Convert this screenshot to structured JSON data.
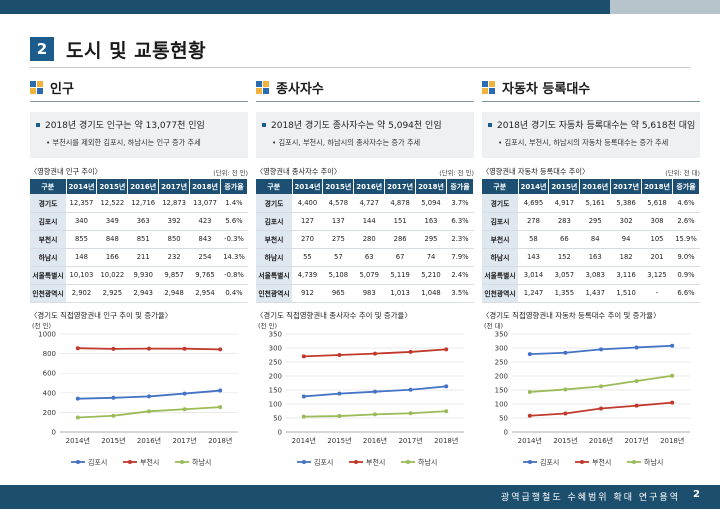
{
  "section": {
    "number": "2",
    "title": "도시 및 교통현황"
  },
  "columns": [
    {
      "title": "인구",
      "bullet_main": "2018년 경기도 인구는 약 13,077천 인임",
      "bullet_sub": "부천시를 제외한 김포시, 하남시는 인구 증가 추세",
      "table_caption": "〈영향권내 인구 추이〉",
      "table_unit": "(단위: 천 인)",
      "table": {
        "headers": [
          "구분",
          "2014년",
          "2015년",
          "2016년",
          "2017년",
          "2018년",
          "증가율"
        ],
        "rows": [
          [
            "경기도",
            "12,357",
            "12,522",
            "12,716",
            "12,873",
            "13,077",
            "1.4%"
          ],
          [
            "김포시",
            "340",
            "349",
            "363",
            "392",
            "423",
            "5.6%"
          ],
          [
            "부천시",
            "855",
            "848",
            "851",
            "850",
            "843",
            "-0.3%"
          ],
          [
            "하남시",
            "148",
            "166",
            "211",
            "232",
            "254",
            "14.3%"
          ],
          [
            "서울특별시",
            "10,103",
            "10,022",
            "9,930",
            "9,857",
            "9,765",
            "-0.8%"
          ],
          [
            "인천광역시",
            "2,902",
            "2,925",
            "2,943",
            "2,948",
            "2,954",
            "0.4%"
          ]
        ]
      },
      "chart_caption": "〈경기도 직접영향권내 인구 추이 및 증가율〉",
      "chart_unit": "(천 인)"
    },
    {
      "title": "종사자수",
      "bullet_main": "2018년 경기도 종사자수는 약 5,094천 인임",
      "bullet_sub": "김포시, 부천시, 하남시의 종사자수는 증가 추세",
      "table_caption": "〈영향권내 종사자수 추이〉",
      "table_unit": "(단위: 천 인)",
      "table": {
        "headers": [
          "구분",
          "2014년",
          "2015년",
          "2016년",
          "2017년",
          "2018년",
          "증가율"
        ],
        "rows": [
          [
            "경기도",
            "4,400",
            "4,578",
            "4,727",
            "4,878",
            "5,094",
            "3.7%"
          ],
          [
            "김포시",
            "127",
            "137",
            "144",
            "151",
            "163",
            "6.3%"
          ],
          [
            "부천시",
            "270",
            "275",
            "280",
            "286",
            "295",
            "2.3%"
          ],
          [
            "하남시",
            "55",
            "57",
            "63",
            "67",
            "74",
            "7.9%"
          ],
          [
            "서울특별시",
            "4,739",
            "5,108",
            "5,079",
            "5,119",
            "5,210",
            "2.4%"
          ],
          [
            "인천광역시",
            "912",
            "965",
            "983",
            "1,013",
            "1,048",
            "3.5%"
          ]
        ]
      },
      "chart_caption": "〈경기도 직접영향권내 종사자수 추이 및 증가율〉",
      "chart_unit": "(천 인)"
    },
    {
      "title": "자동차 등록대수",
      "bullet_main": "2018년 경기도 자동차 등록대수는 약 5,618천 대임",
      "bullet_sub": "김포시, 부천시, 하남시의 자동차 등록대수는 증가 추세",
      "table_caption": "〈영향권내 자동차 등록대수 추이〉",
      "table_unit": "(단위: 천 대)",
      "table": {
        "headers": [
          "구분",
          "2014년",
          "2015년",
          "2016년",
          "2017년",
          "2018년",
          "증가율"
        ],
        "rows": [
          [
            "경기도",
            "4,695",
            "4,917",
            "5,161",
            "5,386",
            "5,618",
            "4.6%"
          ],
          [
            "김포시",
            "278",
            "283",
            "295",
            "302",
            "308",
            "2.6%"
          ],
          [
            "부천시",
            "58",
            "66",
            "84",
            "94",
            "105",
            "15.9%"
          ],
          [
            "하남시",
            "143",
            "152",
            "163",
            "182",
            "201",
            "9.0%"
          ],
          [
            "서울특별시",
            "3,014",
            "3,057",
            "3,083",
            "3,116",
            "3,125",
            "0.9%"
          ],
          [
            "인천광역시",
            "1,247",
            "1,355",
            "1,437",
            "1,510",
            "-",
            "6.6%"
          ]
        ]
      },
      "chart_caption": "〈경기도 직접영향권내 자동차 등록대수 추이 및 증가율〉",
      "chart_unit": "(천 대)"
    }
  ],
  "chart_data": [
    {
      "type": "line",
      "title": "〈경기도 직접영향권내 인구 추이 및 증가율〉",
      "ylabel": "(천 인)",
      "x": [
        "2014년",
        "2015년",
        "2016년",
        "2017년",
        "2018년"
      ],
      "ylim": [
        0,
        1000
      ],
      "yticks": [
        0,
        200,
        400,
        600,
        800,
        1000
      ],
      "legend": "bottom",
      "series": [
        {
          "name": "김포시",
          "color": "#4472c4",
          "values": [
            340,
            349,
            363,
            392,
            423
          ]
        },
        {
          "name": "부천시",
          "color": "#c0392b",
          "values": [
            855,
            848,
            851,
            850,
            843
          ]
        },
        {
          "name": "하남시",
          "color": "#9bbb59",
          "values": [
            148,
            166,
            211,
            232,
            254
          ]
        }
      ]
    },
    {
      "type": "line",
      "title": "〈경기도 직접영향권내 종사자수 추이 및 증가율〉",
      "ylabel": "(천 인)",
      "x": [
        "2014년",
        "2015년",
        "2016년",
        "2017년",
        "2018년"
      ],
      "ylim": [
        0,
        350
      ],
      "yticks": [
        0,
        50,
        100,
        150,
        200,
        250,
        300,
        350
      ],
      "legend": "bottom",
      "series": [
        {
          "name": "김포시",
          "color": "#4472c4",
          "values": [
            127,
            137,
            144,
            151,
            163
          ]
        },
        {
          "name": "부천시",
          "color": "#c0392b",
          "values": [
            270,
            275,
            280,
            286,
            295
          ]
        },
        {
          "name": "하남시",
          "color": "#9bbb59",
          "values": [
            55,
            57,
            63,
            67,
            74
          ]
        }
      ]
    },
    {
      "type": "line",
      "title": "〈경기도 직접영향권내 자동차 등록대수 추이 및 증가율〉",
      "ylabel": "(천 대)",
      "x": [
        "2014년",
        "2015년",
        "2016년",
        "2017년",
        "2018년"
      ],
      "ylim": [
        0,
        350
      ],
      "yticks": [
        0,
        50,
        100,
        150,
        200,
        250,
        300,
        350
      ],
      "legend": "bottom",
      "series": [
        {
          "name": "김포시",
          "color": "#4472c4",
          "values": [
            278,
            283,
            295,
            302,
            308
          ]
        },
        {
          "name": "부천시",
          "color": "#c0392b",
          "values": [
            58,
            66,
            84,
            94,
            105
          ]
        },
        {
          "name": "하남시",
          "color": "#9bbb59",
          "values": [
            143,
            152,
            163,
            182,
            201
          ]
        }
      ]
    }
  ],
  "footer": {
    "text": "광역급행철도 수혜범위 확대 연구용역",
    "page": "2"
  }
}
